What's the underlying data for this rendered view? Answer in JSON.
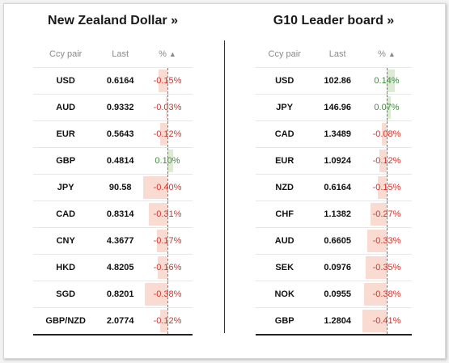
{
  "left_panel": {
    "title": "New Zealand Dollar »",
    "headers": {
      "pair": "Ccy pair",
      "last": "Last",
      "pct": "%"
    },
    "rows": [
      {
        "ccy": "USD",
        "last": "0.6164",
        "pct": "-0.15%",
        "value": -0.15
      },
      {
        "ccy": "AUD",
        "last": "0.9332",
        "pct": "-0.03%",
        "value": -0.03
      },
      {
        "ccy": "EUR",
        "last": "0.5643",
        "pct": "-0.12%",
        "value": -0.12
      },
      {
        "ccy": "GBP",
        "last": "0.4814",
        "pct": "0.10%",
        "value": 0.1
      },
      {
        "ccy": "JPY",
        "last": "90.58",
        "pct": "-0.40%",
        "value": -0.4
      },
      {
        "ccy": "CAD",
        "last": "0.8314",
        "pct": "-0.31%",
        "value": -0.31
      },
      {
        "ccy": "CNY",
        "last": "4.3677",
        "pct": "-0.17%",
        "value": -0.17
      },
      {
        "ccy": "HKD",
        "last": "4.8205",
        "pct": "-0.16%",
        "value": -0.16
      },
      {
        "ccy": "SGD",
        "last": "0.8201",
        "pct": "-0.38%",
        "value": -0.38
      },
      {
        "ccy": "GBP/NZD",
        "last": "2.0774",
        "pct": "-0.12%",
        "value": -0.12
      }
    ]
  },
  "right_panel": {
    "title": "G10 Leader board »",
    "headers": {
      "pair": "Ccy pair",
      "last": "Last",
      "pct": "%"
    },
    "rows": [
      {
        "ccy": "USD",
        "last": "102.86",
        "pct": "0.14%",
        "value": 0.14
      },
      {
        "ccy": "JPY",
        "last": "146.96",
        "pct": "0.07%",
        "value": 0.07
      },
      {
        "ccy": "CAD",
        "last": "1.3489",
        "pct": "-0.08%",
        "value": -0.08
      },
      {
        "ccy": "EUR",
        "last": "1.0924",
        "pct": "-0.12%",
        "value": -0.12
      },
      {
        "ccy": "NZD",
        "last": "0.6164",
        "pct": "-0.15%",
        "value": -0.15
      },
      {
        "ccy": "CHF",
        "last": "1.1382",
        "pct": "-0.27%",
        "value": -0.27
      },
      {
        "ccy": "AUD",
        "last": "0.6605",
        "pct": "-0.33%",
        "value": -0.33
      },
      {
        "ccy": "SEK",
        "last": "0.0976",
        "pct": "-0.35%",
        "value": -0.35
      },
      {
        "ccy": "NOK",
        "last": "0.0955",
        "pct": "-0.38%",
        "value": -0.38
      },
      {
        "ccy": "GBP",
        "last": "1.2804",
        "pct": "-0.41%",
        "value": -0.41
      }
    ]
  },
  "icons": {
    "sort": "sort-up-icon"
  },
  "colors": {
    "negative_text": "#d0342c",
    "positive_text": "#3f8a3f",
    "negative_bar": "#fadbd2",
    "positive_bar": "#dcecd3"
  }
}
